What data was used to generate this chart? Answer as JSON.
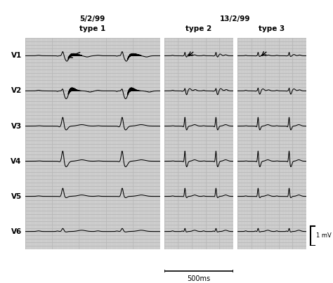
{
  "title_left_line1": "5/2/99",
  "title_left_line2": "type 1",
  "title_right_line1": "13/2/99",
  "title_right_sub1": "type 2",
  "title_right_sub2": "type 3",
  "leads": [
    "V1",
    "V2",
    "V3",
    "V4",
    "V5",
    "V6"
  ],
  "scale_label": "1 mV",
  "time_label": "500ms",
  "panel_bg": "#c8c8c8",
  "grid_minor_color": "#e8e8e8",
  "grid_major_color": "#b8b8b8",
  "line_color": "#000000",
  "figure_bg": "#ffffff",
  "arrow_color": "#000000"
}
